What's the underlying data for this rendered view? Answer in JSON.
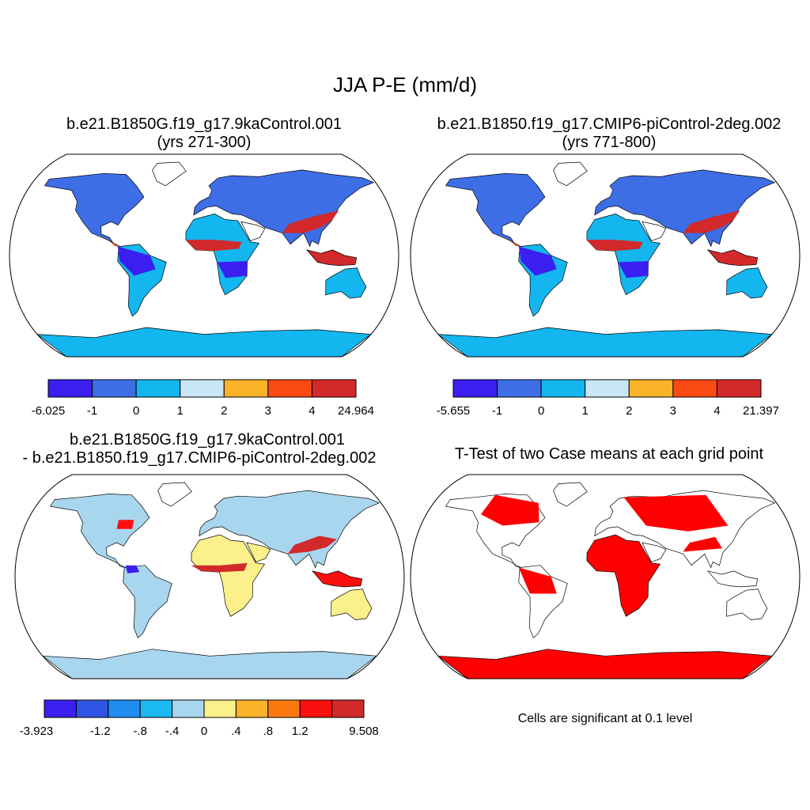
{
  "title": "JJA P-E (mm/d)",
  "panels": [
    {
      "id": "case1",
      "title_line1": "b.e21.B1850G.f19_g17.9kaControl.001",
      "title_line2": "(yrs 271-300)",
      "colorbar": {
        "colors": [
          "#3a1ff0",
          "#3d6ee6",
          "#13b6ee",
          "#c9e6f6",
          "#fbb428",
          "#fb4a14",
          "#d2292a"
        ],
        "labels": [
          "-6.025",
          "-1",
          "0",
          "1",
          "2",
          "3",
          "4",
          "24.964"
        ]
      }
    },
    {
      "id": "case2",
      "title_line1": "b.e21.B1850.f19_g17.CMIP6-piControl-2deg.002",
      "title_line2": "(yrs 771-800)",
      "colorbar": {
        "colors": [
          "#3a1ff0",
          "#3d6ee6",
          "#13b6ee",
          "#c9e6f6",
          "#fbb428",
          "#fb4a14",
          "#d2292a"
        ],
        "labels": [
          "-5.655",
          "-1",
          "0",
          "1",
          "2",
          "3",
          "4",
          "21.397"
        ]
      }
    },
    {
      "id": "diff",
      "title_line1": "b.e21.B1850G.f19_g17.9kaControl.001",
      "title_line2": "- b.e21.B1850.f19_g17.CMIP6-piControl-2deg.002",
      "colorbar": {
        "colors": [
          "#3a1ff0",
          "#2f55e4",
          "#1f8cf2",
          "#1cb9f0",
          "#a8d6ef",
          "#fbf08a",
          "#fbb428",
          "#fb7a10",
          "#fb1010",
          "#d2292a"
        ],
        "labels": [
          "-3.923",
          "",
          "-1.2",
          "-.8",
          "-.4",
          "0",
          ".4",
          ".8",
          "1.2",
          "",
          "9.508"
        ]
      }
    },
    {
      "id": "ttest",
      "title_line1": "T-Test of two Case means at each grid point",
      "note": "Cells are significant at 0.1 level",
      "sig_color": "#ff0000"
    }
  ]
}
